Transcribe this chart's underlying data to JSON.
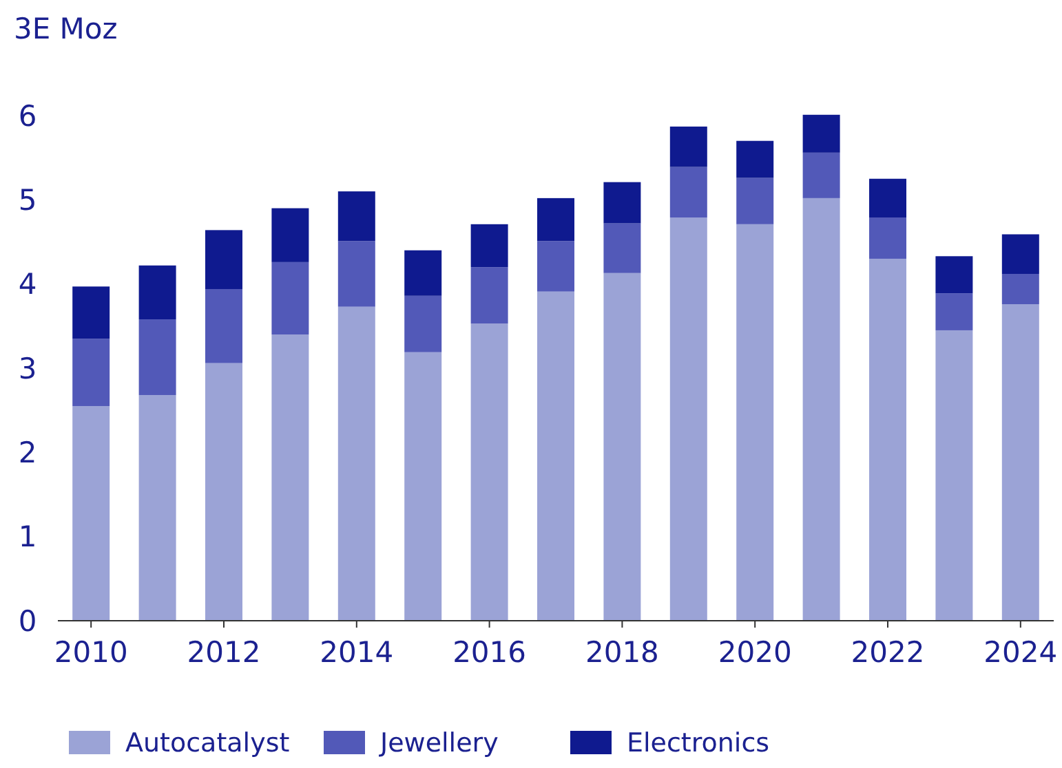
{
  "chart_data": {
    "type": "bar",
    "stacked": true,
    "ylabel": "3E Moz",
    "categories": [
      "2010",
      null,
      "2012",
      null,
      "2014",
      null,
      "2016",
      null,
      "2018",
      null,
      "2020",
      null,
      "2022",
      null,
      "2024"
    ],
    "series": [
      {
        "name": "Autocatalyst",
        "color": "#9ba3d6",
        "values": [
          2.55,
          2.68,
          3.06,
          3.4,
          3.73,
          3.19,
          3.53,
          3.91,
          4.13,
          4.79,
          4.71,
          5.02,
          4.3,
          3.45,
          3.76
        ]
      },
      {
        "name": "Jewellery",
        "color": "#5259b8",
        "values": [
          0.8,
          0.9,
          0.88,
          0.86,
          0.78,
          0.67,
          0.67,
          0.6,
          0.59,
          0.6,
          0.55,
          0.54,
          0.49,
          0.44,
          0.36
        ]
      },
      {
        "name": "Electronics",
        "color": "#0f1a8f",
        "values": [
          0.62,
          0.64,
          0.7,
          0.64,
          0.59,
          0.54,
          0.51,
          0.51,
          0.49,
          0.48,
          0.44,
          0.45,
          0.46,
          0.44,
          0.47
        ]
      }
    ],
    "ylim": [
      0,
      6
    ],
    "yticks": [
      0,
      1,
      2,
      3,
      4,
      5,
      6
    ],
    "grid": false,
    "legend": "bottom"
  }
}
